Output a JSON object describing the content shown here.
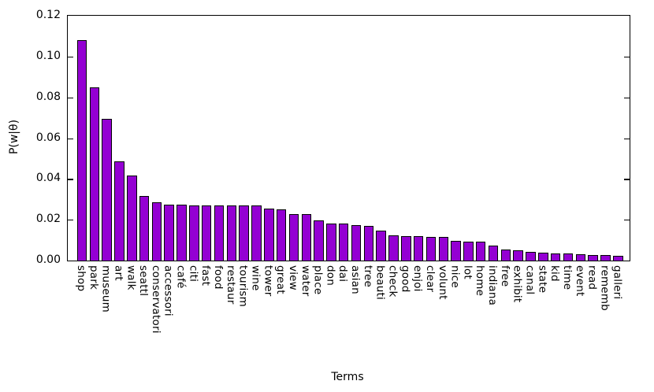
{
  "figure": {
    "xlabel": "Terms",
    "ylabel": "P(w|θ)"
  },
  "chart_data": {
    "type": "bar",
    "title": "",
    "xlabel": "Terms",
    "ylabel": "P(w|θ)",
    "ylim": [
      0,
      0.12
    ],
    "yticks": [
      0.0,
      0.02,
      0.04,
      0.06,
      0.08,
      0.1,
      0.12
    ],
    "ytick_labels": [
      "0.00",
      "0.02",
      "0.04",
      "0.06",
      "0.08",
      "0.10",
      "0.12"
    ],
    "grid": false,
    "legend_position": "none",
    "bar_color": "#9400D3",
    "bar_edge_color": "#000000",
    "categories": [
      "shop",
      "park",
      "museum",
      "art",
      "walk",
      "seattl",
      "conservatori",
      "accessori",
      "café",
      "citi",
      "fast",
      "food",
      "restaur",
      "tourism",
      "wine",
      "tower",
      "great",
      "view",
      "water",
      "place",
      "don",
      "dai",
      "asian",
      "tree",
      "beauti",
      "check",
      "good",
      "enjoi",
      "clear",
      "volunt",
      "nice",
      "lot",
      "home",
      "indiana",
      "free",
      "exhibit",
      "canal",
      "state",
      "kid",
      "time",
      "event",
      "read",
      "rememb",
      "galleri"
    ],
    "values": [
      0.108,
      0.0847,
      0.0695,
      0.0487,
      0.0415,
      0.0318,
      0.0286,
      0.0273,
      0.0273,
      0.0272,
      0.0272,
      0.0272,
      0.0272,
      0.0271,
      0.0271,
      0.0256,
      0.025,
      0.0229,
      0.0228,
      0.0195,
      0.0183,
      0.0182,
      0.0172,
      0.0168,
      0.0146,
      0.0122,
      0.0121,
      0.012,
      0.0116,
      0.0114,
      0.0096,
      0.0092,
      0.0091,
      0.0075,
      0.0054,
      0.0049,
      0.0043,
      0.004,
      0.0036,
      0.0034,
      0.003,
      0.0027,
      0.0026,
      0.0025
    ]
  }
}
